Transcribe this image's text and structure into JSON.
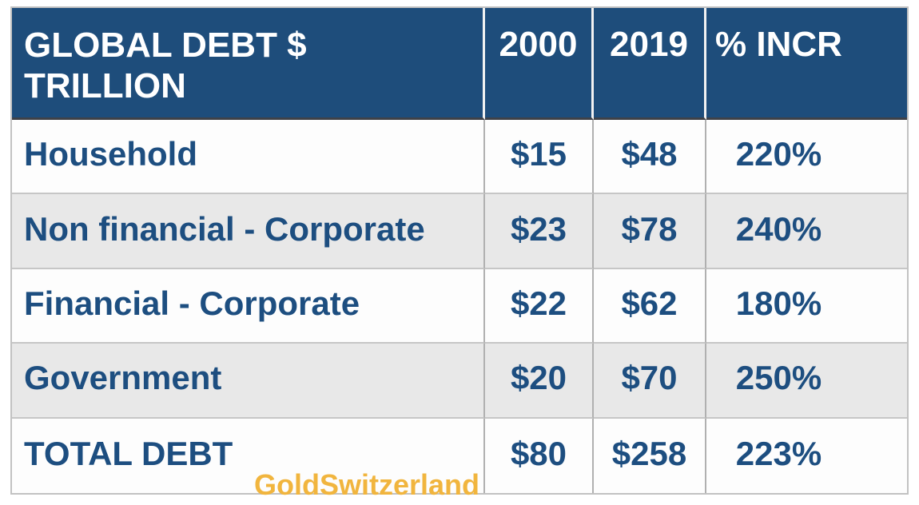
{
  "colors": {
    "header_bg": "#1E4D7B",
    "header_text": "#FFFFFF",
    "body_text": "#1D4E80",
    "row_bg": "#FDFDFD",
    "row_alt_bg": "#E8E8E8",
    "border_outer": "#C2C2C2",
    "border_vertical": "#B0B0B0",
    "border_horizontal": "#C6C6C6",
    "header_divider": "#F2F2F2",
    "header_bottom_border": "#3F4248",
    "watermark": "#F1B53E"
  },
  "table": {
    "header": {
      "label": "GLOBAL DEBT $ TRILLION",
      "col_2000": "2000",
      "col_2019": "2019",
      "col_incr": "% INCR"
    },
    "rows": [
      {
        "label": "Household",
        "y2000": "$15",
        "y2019": "$48",
        "incr": "220%"
      },
      {
        "label": "Non financial - Corporate",
        "y2000": "$23",
        "y2019": "$78",
        "incr": "240%"
      },
      {
        "label": "Financial - Corporate",
        "y2000": "$22",
        "y2019": "$62",
        "incr": "180%"
      },
      {
        "label": "Government",
        "y2000": "$20",
        "y2019": "$70",
        "incr": "250%"
      },
      {
        "label": "TOTAL DEBT",
        "y2000": "$80",
        "y2019": "$258",
        "incr": "223%"
      }
    ]
  },
  "watermark": {
    "text": "GoldSwitzerland"
  },
  "chart_data": {
    "type": "table",
    "title": "GLOBAL DEBT $ TRILLION",
    "columns": [
      "GLOBAL DEBT $ TRILLION",
      "2000",
      "2019",
      "% INCR"
    ],
    "categories": [
      "Household",
      "Non financial - Corporate",
      "Financial - Corporate",
      "Government",
      "TOTAL DEBT"
    ],
    "series": [
      {
        "name": "2000",
        "values": [
          15,
          23,
          22,
          20,
          80
        ]
      },
      {
        "name": "2019",
        "values": [
          48,
          78,
          62,
          70,
          258
        ]
      },
      {
        "name": "% INCR",
        "values": [
          220,
          240,
          180,
          250,
          223
        ]
      }
    ],
    "source_watermark": "GoldSwitzerland"
  }
}
